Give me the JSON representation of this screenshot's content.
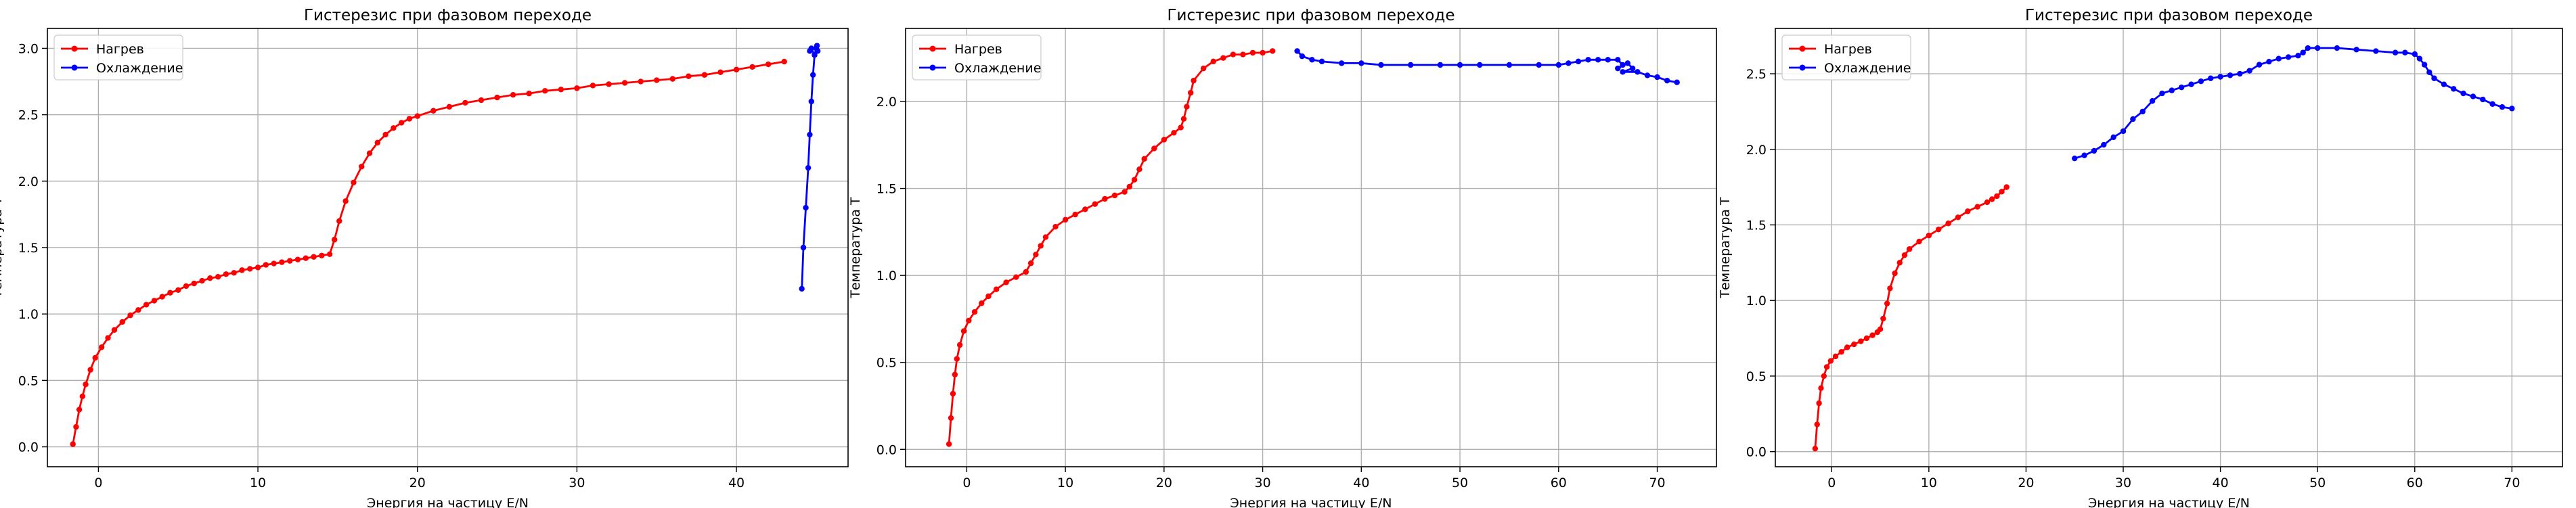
{
  "colors": {
    "heating": "#ff0000",
    "cooling": "#0000ff",
    "grid": "#b0b0b0",
    "axes": "#000000"
  },
  "chart_data": [
    {
      "type": "line",
      "title": "Гистерезис при фазовом переходе",
      "xlabel": "Энергия на частицу E/N",
      "ylabel": "Температура T",
      "xlim": [
        -3.2,
        47.0
      ],
      "ylim": [
        -0.15,
        3.15
      ],
      "xticks": [
        0,
        10,
        20,
        30,
        40
      ],
      "yticks": [
        0.0,
        0.5,
        1.0,
        1.5,
        2.0,
        2.5,
        3.0
      ],
      "grid": true,
      "legend_position": "top-left",
      "series": [
        {
          "name": "Нагрев",
          "color": "#ff0000",
          "marker": "dot",
          "x": [
            -1.6,
            -1.4,
            -1.2,
            -1.0,
            -0.8,
            -0.5,
            -0.2,
            0.2,
            0.6,
            1.0,
            1.5,
            2.0,
            2.5,
            3.0,
            3.5,
            4.0,
            4.5,
            5.0,
            5.5,
            6.0,
            6.5,
            7.0,
            7.5,
            8.0,
            8.5,
            9.0,
            9.5,
            10.0,
            10.5,
            11.0,
            11.5,
            12.0,
            12.5,
            13.0,
            13.5,
            14.0,
            14.5,
            14.8,
            15.1,
            15.5,
            16.0,
            16.5,
            17.0,
            17.5,
            18.0,
            18.5,
            19.0,
            19.5,
            20.0,
            21.0,
            22.0,
            23.0,
            24.0,
            25.0,
            26.0,
            27.0,
            28.0,
            29.0,
            30.0,
            31.0,
            32.0,
            33.0,
            34.0,
            35.0,
            36.0,
            37.0,
            38.0,
            39.0,
            40.0,
            41.0,
            42.0,
            43.0
          ],
          "y": [
            0.02,
            0.15,
            0.28,
            0.38,
            0.47,
            0.58,
            0.67,
            0.75,
            0.82,
            0.88,
            0.94,
            0.99,
            1.03,
            1.07,
            1.1,
            1.13,
            1.16,
            1.18,
            1.21,
            1.23,
            1.25,
            1.27,
            1.28,
            1.3,
            1.31,
            1.33,
            1.34,
            1.35,
            1.37,
            1.38,
            1.39,
            1.4,
            1.41,
            1.42,
            1.43,
            1.44,
            1.45,
            1.56,
            1.7,
            1.85,
            1.99,
            2.11,
            2.21,
            2.29,
            2.35,
            2.4,
            2.44,
            2.47,
            2.49,
            2.53,
            2.56,
            2.59,
            2.61,
            2.63,
            2.65,
            2.66,
            2.68,
            2.69,
            2.7,
            2.72,
            2.73,
            2.74,
            2.75,
            2.76,
            2.77,
            2.79,
            2.8,
            2.82,
            2.84,
            2.86,
            2.88,
            2.9
          ]
        },
        {
          "name": "Охлаждение",
          "color": "#0000ff",
          "marker": "dot",
          "x": [
            44.1,
            44.2,
            44.35,
            44.5,
            44.6,
            44.7,
            44.8,
            44.9,
            45.0,
            45.05,
            45.1,
            44.9,
            44.7,
            44.6
          ],
          "y": [
            1.19,
            1.5,
            1.8,
            2.1,
            2.35,
            2.6,
            2.8,
            2.95,
            3.0,
            3.02,
            2.98,
            2.95,
            3.0,
            2.98
          ]
        }
      ]
    },
    {
      "type": "line",
      "title": "Гистерезис при фазовом переходе",
      "xlabel": "Энергия на частицу E/N",
      "ylabel": "Температура T",
      "xlim": [
        -6.2,
        76.0
      ],
      "ylim": [
        -0.1,
        2.42
      ],
      "xticks": [
        0,
        10,
        20,
        30,
        40,
        50,
        60,
        70
      ],
      "yticks": [
        0.0,
        0.5,
        1.0,
        1.5,
        2.0
      ],
      "grid": true,
      "legend_position": "top-left",
      "series": [
        {
          "name": "Нагрев",
          "color": "#ff0000",
          "marker": "dot",
          "x": [
            -1.8,
            -1.6,
            -1.4,
            -1.2,
            -1.0,
            -0.7,
            -0.3,
            0.2,
            0.8,
            1.5,
            2.2,
            3.0,
            4.0,
            5.0,
            6.0,
            6.5,
            7.0,
            7.5,
            8.0,
            9.0,
            10.0,
            11.0,
            12.0,
            13.0,
            14.0,
            15.0,
            16.0,
            16.5,
            17.0,
            17.5,
            18.0,
            19.0,
            20.0,
            21.0,
            21.7,
            22.0,
            22.3,
            22.7,
            23.0,
            24.0,
            25.0,
            26.0,
            27.0,
            28.0,
            29.0,
            30.0,
            31.0
          ],
          "y": [
            0.03,
            0.18,
            0.32,
            0.43,
            0.52,
            0.6,
            0.68,
            0.74,
            0.79,
            0.84,
            0.88,
            0.92,
            0.96,
            0.99,
            1.02,
            1.07,
            1.12,
            1.17,
            1.22,
            1.28,
            1.32,
            1.35,
            1.38,
            1.41,
            1.44,
            1.46,
            1.48,
            1.51,
            1.55,
            1.61,
            1.67,
            1.73,
            1.78,
            1.82,
            1.85,
            1.9,
            1.97,
            2.05,
            2.12,
            2.19,
            2.23,
            2.25,
            2.27,
            2.27,
            2.28,
            2.28,
            2.29
          ]
        },
        {
          "name": "Охлаждение",
          "color": "#0000ff",
          "marker": "dot",
          "x": [
            33.5,
            34.0,
            35.0,
            36.0,
            38.0,
            40.0,
            42.0,
            45.0,
            48.0,
            50.0,
            52.0,
            55.0,
            58.0,
            60.0,
            61.0,
            62.0,
            63.0,
            64.0,
            65.0,
            66.0,
            66.5,
            66.0,
            67.0,
            67.5,
            66.5,
            68.0,
            69.0,
            70.0,
            71.0,
            72.0
          ],
          "y": [
            2.29,
            2.26,
            2.24,
            2.23,
            2.22,
            2.22,
            2.21,
            2.21,
            2.21,
            2.21,
            2.21,
            2.21,
            2.21,
            2.21,
            2.22,
            2.23,
            2.24,
            2.24,
            2.24,
            2.24,
            2.21,
            2.19,
            2.22,
            2.19,
            2.17,
            2.17,
            2.15,
            2.14,
            2.12,
            2.11
          ]
        }
      ]
    },
    {
      "type": "line",
      "title": "Гистерезис при фазовом переходе",
      "xlabel": "Энергия на частицу E/N",
      "ylabel": "Температура T",
      "xlim": [
        -5.8,
        75.2
      ],
      "ylim": [
        -0.1,
        2.8
      ],
      "xticks": [
        0,
        10,
        20,
        30,
        40,
        50,
        60,
        70
      ],
      "yticks": [
        0.0,
        0.5,
        1.0,
        1.5,
        2.0,
        2.5
      ],
      "grid": true,
      "legend_position": "top-left",
      "series": [
        {
          "name": "Нагрев",
          "color": "#ff0000",
          "marker": "dot",
          "x": [
            -1.7,
            -1.5,
            -1.3,
            -1.1,
            -0.8,
            -0.5,
            -0.1,
            0.4,
            1.0,
            1.6,
            2.3,
            3.0,
            3.6,
            4.2,
            4.7,
            5.0,
            5.3,
            5.7,
            6.0,
            6.5,
            7.0,
            7.5,
            8.0,
            9.0,
            10.0,
            11.0,
            12.0,
            13.0,
            14.0,
            15.0,
            16.0,
            16.5,
            17.0,
            17.5,
            18.0
          ],
          "y": [
            0.02,
            0.18,
            0.32,
            0.42,
            0.5,
            0.56,
            0.6,
            0.63,
            0.66,
            0.69,
            0.71,
            0.73,
            0.75,
            0.77,
            0.79,
            0.81,
            0.88,
            0.98,
            1.08,
            1.18,
            1.25,
            1.3,
            1.34,
            1.39,
            1.43,
            1.47,
            1.51,
            1.55,
            1.59,
            1.62,
            1.65,
            1.67,
            1.69,
            1.72,
            1.75
          ]
        },
        {
          "name": "Охлаждение",
          "color": "#0000ff",
          "marker": "dot",
          "x": [
            25.0,
            26.0,
            27.0,
            28.0,
            29.0,
            30.0,
            31.0,
            32.0,
            33.0,
            34.0,
            35.0,
            36.0,
            37.0,
            38.0,
            39.0,
            40.0,
            41.0,
            42.0,
            43.0,
            44.0,
            45.0,
            46.0,
            47.0,
            48.0,
            48.5,
            49.0,
            50.0,
            52.0,
            54.0,
            56.0,
            58.0,
            59.0,
            60.0,
            60.5,
            61.0,
            61.5,
            62.0,
            63.0,
            64.0,
            65.0,
            66.0,
            67.0,
            68.0,
            69.0,
            70.0
          ],
          "y": [
            1.94,
            1.96,
            1.99,
            2.03,
            2.08,
            2.12,
            2.2,
            2.25,
            2.32,
            2.37,
            2.39,
            2.41,
            2.43,
            2.45,
            2.47,
            2.48,
            2.49,
            2.5,
            2.52,
            2.56,
            2.58,
            2.6,
            2.61,
            2.62,
            2.64,
            2.67,
            2.67,
            2.67,
            2.66,
            2.65,
            2.64,
            2.64,
            2.63,
            2.6,
            2.56,
            2.51,
            2.47,
            2.43,
            2.4,
            2.37,
            2.35,
            2.33,
            2.3,
            2.28,
            2.27
          ]
        }
      ]
    }
  ]
}
